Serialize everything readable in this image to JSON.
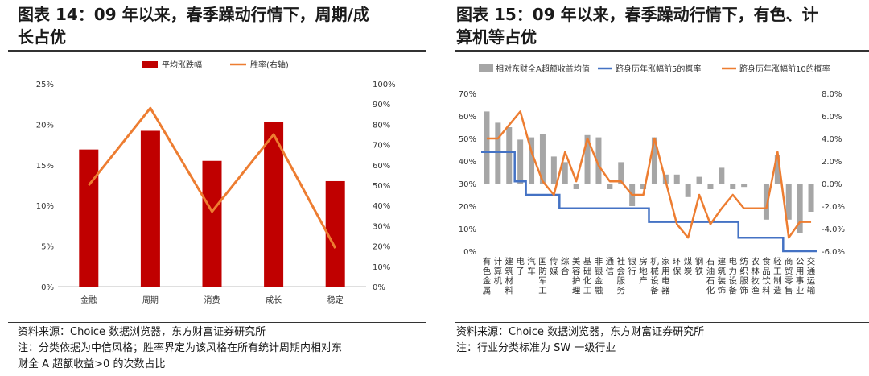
{
  "left": {
    "title_line1": "图表 14：09 年以来，春季躁动行情下，周期/成",
    "title_line2": "长占优",
    "source": "资料来源：Choice 数据浏览器，东方财富证券研究所",
    "note_line1": "注：分类依据为中信风格；胜率界定为该风格在所有统计周期内相对东",
    "note_line2": "财全 A 超额收益>0 的次数占比"
  },
  "right": {
    "title_line1": "图表 15：09 年以来，春季躁动行情下，有色、计",
    "title_line2": "算机等占优",
    "source": "资料来源：Choice 数据浏览器，东方财富证券研究所",
    "note": "注：行业分类标准为 SW 一级行业"
  },
  "chart_data": [
    {
      "type": "bar",
      "title": "",
      "categories": [
        "金融",
        "周期",
        "消费",
        "成长",
        "稳定"
      ],
      "series": [
        {
          "name": "平均涨跌幅",
          "type": "bar",
          "axis": "left",
          "color": "#C00000",
          "values": [
            16.9,
            19.2,
            15.5,
            20.3,
            13.0
          ]
        },
        {
          "name": "胜率(右轴)",
          "type": "line",
          "axis": "right",
          "color": "#ED7D31",
          "values": [
            50,
            88,
            37,
            75,
            19
          ]
        }
      ],
      "y_left": {
        "min": 0,
        "max": 25,
        "step": 5,
        "ticks": [
          "0%",
          "5%",
          "10%",
          "15%",
          "20%",
          "25%"
        ]
      },
      "y_right": {
        "min": 0,
        "max": 100,
        "step": 10,
        "ticks": [
          "0%",
          "10%",
          "20%",
          "30%",
          "40%",
          "50%",
          "60%",
          "70%",
          "80%",
          "90%",
          "100%"
        ]
      },
      "legend": "top"
    },
    {
      "type": "bar",
      "title": "",
      "categories": [
        "有色金属",
        "计算机",
        "建筑材料",
        "电子",
        "汽车",
        "国防军工",
        "传媒",
        "综合",
        "美容护理",
        "基础化工",
        "非银金融",
        "通信",
        "社会服务",
        "银行",
        "房地产",
        "机械设备",
        "家用电器",
        "环保",
        "煤炭",
        "钢铁",
        "石油石化",
        "建筑装饰",
        "电力设备",
        "纺织服饰",
        "农林牧渔",
        "食品饮料",
        "轻工制造",
        "商贸零售",
        "公用事业",
        "交通运输"
      ],
      "series": [
        {
          "name": "相对东财全A超额收益均值",
          "type": "bar",
          "axis": "right",
          "color": "#A6A6A6",
          "values": [
            6.4,
            5.4,
            5.0,
            3.9,
            4.1,
            4.4,
            2.4,
            1.9,
            -0.5,
            4.3,
            4.1,
            -0.5,
            1.9,
            -2.0,
            -0.5,
            4.1,
            0.8,
            0.8,
            -1.2,
            0.6,
            -0.5,
            1.4,
            -0.5,
            -0.3,
            0.0,
            -3.2,
            2.5,
            -3.2,
            -4.4,
            -2.5
          ]
        },
        {
          "name": "跻身历年涨幅前5的概率",
          "type": "line",
          "axis": "left",
          "color": "#4472C4",
          "values": [
            44,
            44,
            44,
            31,
            25,
            25,
            25,
            19,
            19,
            19,
            19,
            19,
            19,
            19,
            19,
            13,
            13,
            13,
            13,
            13,
            13,
            13,
            13,
            6,
            6,
            6,
            6,
            0,
            0,
            0
          ]
        },
        {
          "name": "跻身历年涨幅前10的概率",
          "type": "line",
          "axis": "left",
          "color": "#ED7D31",
          "values": [
            50,
            50,
            56,
            62,
            44,
            31,
            25,
            44,
            31,
            50,
            38,
            31,
            31,
            25,
            25,
            50,
            31,
            12,
            6,
            25,
            12,
            19,
            25,
            19,
            19,
            19,
            44,
            6,
            13,
            13
          ]
        }
      ],
      "y_left": {
        "min": 0,
        "max": 70,
        "step": 10,
        "ticks": [
          "0%",
          "10%",
          "20%",
          "30%",
          "40%",
          "50%",
          "60%",
          "70%"
        ]
      },
      "y_right": {
        "min": -6,
        "max": 8,
        "step": 2,
        "ticks": [
          "-6.0%",
          "-4.0%",
          "-2.0%",
          "0.0%",
          "2.0%",
          "4.0%",
          "6.0%",
          "8.0%"
        ]
      },
      "legend": "top"
    }
  ]
}
